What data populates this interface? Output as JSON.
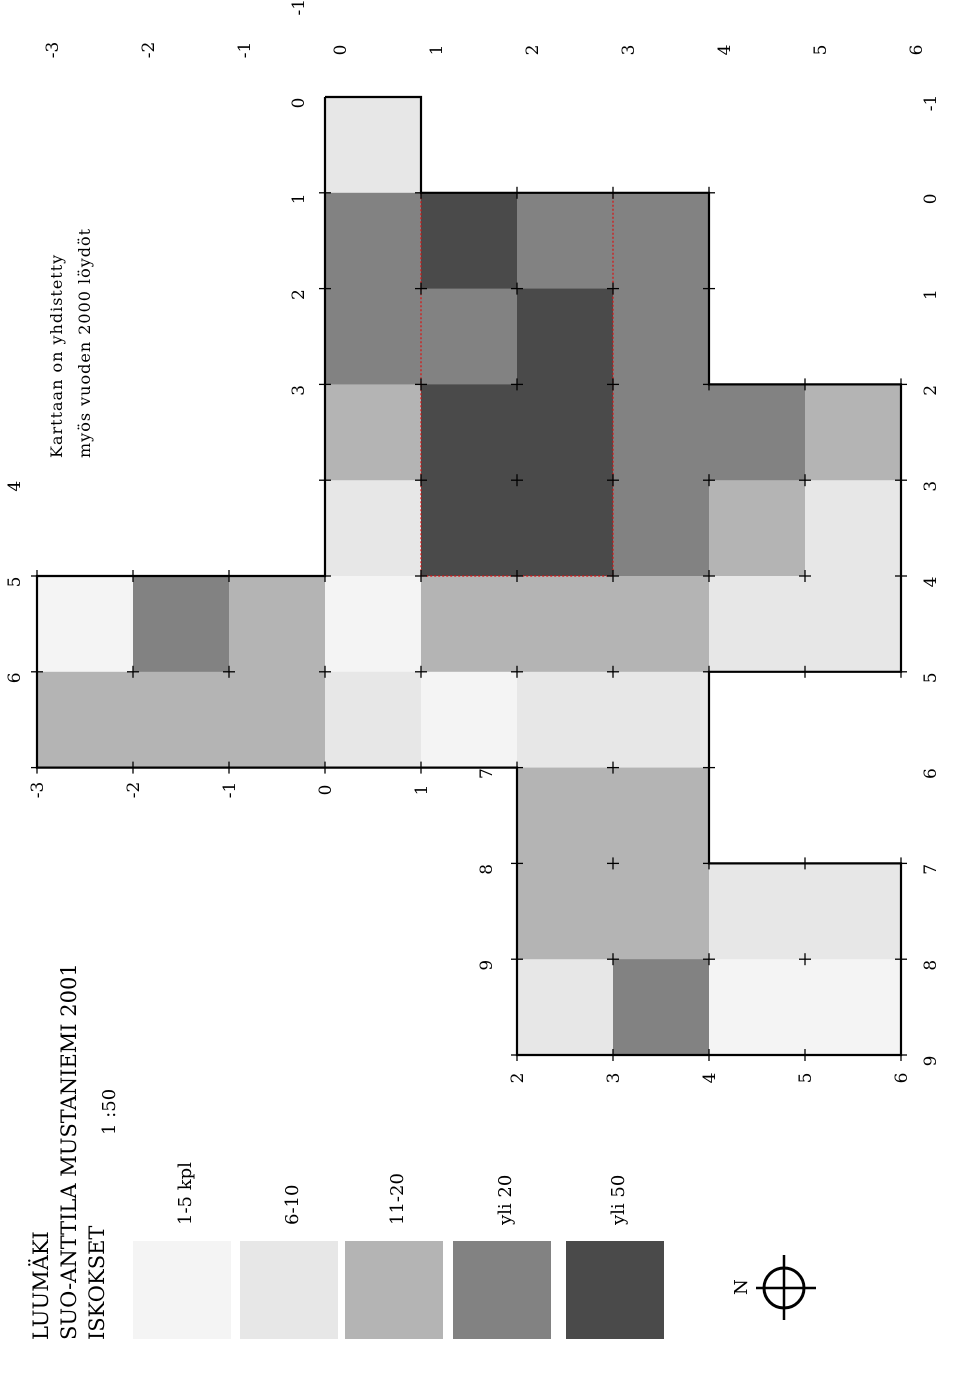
{
  "title": {
    "line1": "LUUMÄKI",
    "line2": "SUO-ANTTILA  MUSTANIEMI  2001",
    "line3": "ISKOKSET",
    "scale": "1 :50"
  },
  "note": {
    "line1": "Karttaan  on  yhdistetty",
    "line2": "myös  vuoden  2000  löydöt"
  },
  "legend": [
    {
      "label": "1-5  kpl",
      "color": "#f4f4f4"
    },
    {
      "label": "6-10",
      "color": "#e7e7e7"
    },
    {
      "label": "11-20",
      "color": "#b4b4b4"
    },
    {
      "label": "yli  20",
      "color": "#828282"
    },
    {
      "label": "yli  50",
      "color": "#4a4a4a"
    }
  ],
  "north": {
    "label": "N",
    "icon": "north-arrow-crosshair-icon"
  },
  "axes": {
    "rotated_x": [
      "-1",
      "0",
      "1",
      "2",
      "3",
      "4",
      "5",
      "6",
      "7",
      "8",
      "9"
    ],
    "rotated_y_top": [
      "-3",
      "-2",
      "-1",
      "0",
      "1",
      "2",
      "3",
      "4",
      "5",
      "6"
    ],
    "rotated_y_bottom_a": [
      "-3",
      "-2",
      "-1",
      "0",
      "1"
    ],
    "rotated_y_bottom_b": [
      "2",
      "3",
      "4",
      "5",
      "6"
    ],
    "rotated_x_left": [
      "4",
      "5",
      "6"
    ],
    "rotated_x_inner": [
      "-1",
      "0",
      "1",
      "2",
      "3"
    ],
    "rotated_x_lower": [
      "7",
      "8",
      "9"
    ]
  },
  "chart_data": {
    "type": "heatmap",
    "x_label": "",
    "y_label": "",
    "legend_scale": [
      "1-5  kpl",
      "6-10",
      "11-20",
      "yli  20",
      "yli  50"
    ],
    "cells": [
      {
        "x": -1,
        "y": 0,
        "v": "6-10"
      },
      {
        "x": 0,
        "y": 0,
        "v": "yli  20"
      },
      {
        "x": 0,
        "y": 1,
        "v": "yli  50"
      },
      {
        "x": 0,
        "y": 2,
        "v": "yli  20"
      },
      {
        "x": 0,
        "y": 3,
        "v": "yli  20"
      },
      {
        "x": 1,
        "y": 0,
        "v": "yli  20"
      },
      {
        "x": 1,
        "y": 1,
        "v": "yli  20"
      },
      {
        "x": 1,
        "y": 2,
        "v": "yli  50"
      },
      {
        "x": 1,
        "y": 3,
        "v": "yli  20"
      },
      {
        "x": 2,
        "y": 0,
        "v": "11-20"
      },
      {
        "x": 2,
        "y": 1,
        "v": "yli  50"
      },
      {
        "x": 2,
        "y": 2,
        "v": "yli  50"
      },
      {
        "x": 2,
        "y": 3,
        "v": "yli  20"
      },
      {
        "x": 2,
        "y": 4,
        "v": "yli  20"
      },
      {
        "x": 2,
        "y": 5,
        "v": "11-20"
      },
      {
        "x": 3,
        "y": 0,
        "v": "6-10"
      },
      {
        "x": 3,
        "y": 1,
        "v": "yli  50"
      },
      {
        "x": 3,
        "y": 2,
        "v": "yli  50"
      },
      {
        "x": 3,
        "y": 3,
        "v": "yli  20"
      },
      {
        "x": 3,
        "y": 4,
        "v": "11-20"
      },
      {
        "x": 3,
        "y": 5,
        "v": "6-10"
      },
      {
        "x": 4,
        "y": -3,
        "v": "1-5  kpl"
      },
      {
        "x": 4,
        "y": -2,
        "v": "yli  20"
      },
      {
        "x": 4,
        "y": -1,
        "v": "11-20"
      },
      {
        "x": 4,
        "y": 0,
        "v": "1-5  kpl"
      },
      {
        "x": 4,
        "y": 1,
        "v": "11-20"
      },
      {
        "x": 4,
        "y": 2,
        "v": "11-20"
      },
      {
        "x": 4,
        "y": 3,
        "v": "11-20"
      },
      {
        "x": 4,
        "y": 4,
        "v": "6-10"
      },
      {
        "x": 4,
        "y": 5,
        "v": "6-10"
      },
      {
        "x": 5,
        "y": -3,
        "v": "11-20"
      },
      {
        "x": 5,
        "y": -2,
        "v": "11-20"
      },
      {
        "x": 5,
        "y": -1,
        "v": "11-20"
      },
      {
        "x": 5,
        "y": 0,
        "v": "6-10"
      },
      {
        "x": 5,
        "y": 1,
        "v": "1-5  kpl"
      },
      {
        "x": 5,
        "y": 2,
        "v": "6-10"
      },
      {
        "x": 5,
        "y": 3,
        "v": "6-10"
      },
      {
        "x": 6,
        "y": 2,
        "v": "11-20"
      },
      {
        "x": 6,
        "y": 3,
        "v": "11-20"
      },
      {
        "x": 7,
        "y": 2,
        "v": "11-20"
      },
      {
        "x": 7,
        "y": 3,
        "v": "11-20"
      },
      {
        "x": 7,
        "y": 4,
        "v": "6-10"
      },
      {
        "x": 7,
        "y": 5,
        "v": "6-10"
      },
      {
        "x": 8,
        "y": 2,
        "v": "6-10"
      },
      {
        "x": 8,
        "y": 3,
        "v": "yli  20"
      },
      {
        "x": 8,
        "y": 4,
        "v": "1-5  kpl"
      },
      {
        "x": 8,
        "y": 5,
        "v": "1-5  kpl"
      }
    ]
  }
}
